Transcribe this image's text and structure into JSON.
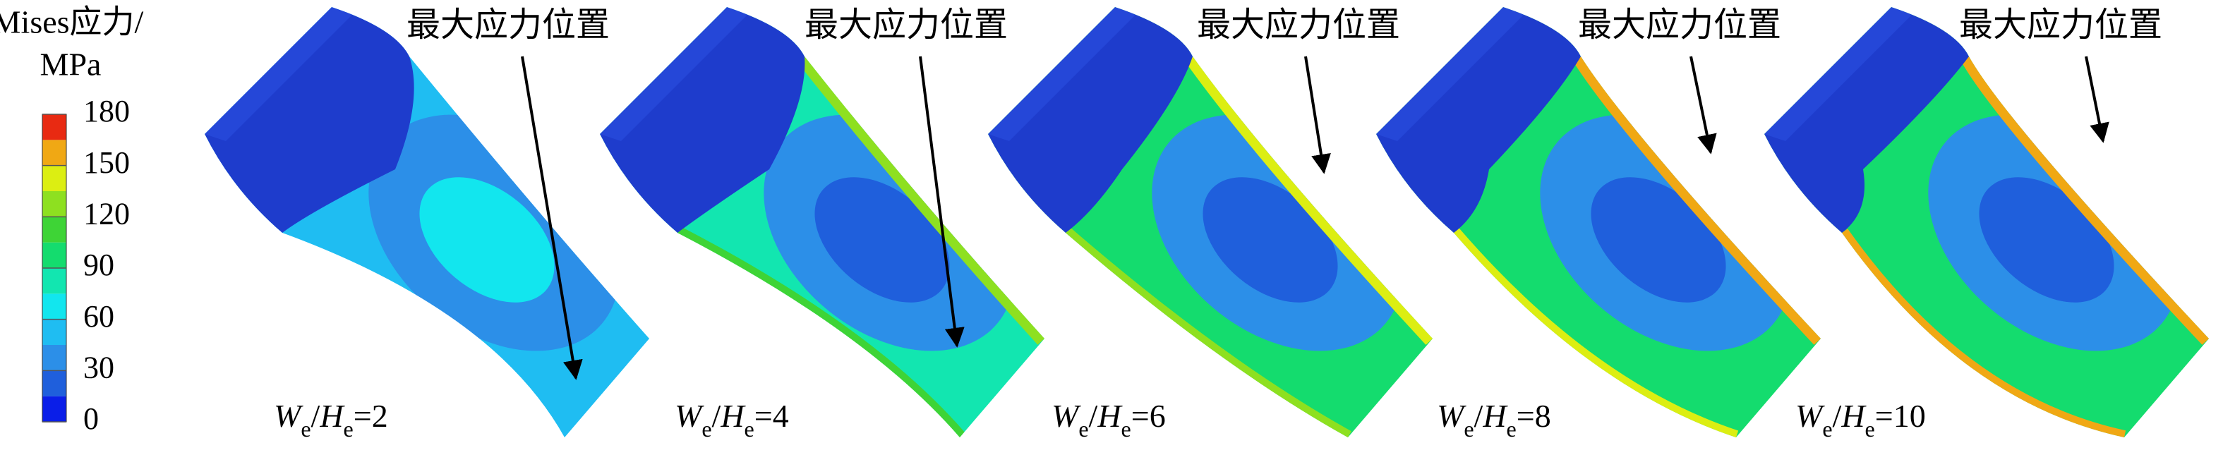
{
  "colorbar": {
    "title": "Mises应力/",
    "unit": "MPa",
    "range": [
      0,
      180
    ],
    "ticks": [
      0,
      30,
      60,
      90,
      120,
      150,
      180
    ],
    "colors": [
      "#0a1ee8",
      "#1f5fdc",
      "#2c8fe8",
      "#1fbdf2",
      "#12e6ee",
      "#12e6b0",
      "#14dc6e",
      "#3ed436",
      "#8ee020",
      "#dcee12",
      "#f0a814",
      "#e82a12"
    ]
  },
  "panels": [
    {
      "annotation": "最大应力位置",
      "label": {
        "var1": "W",
        "sub1": "e",
        "slash": "/",
        "var2": "H",
        "sub2": "e",
        "value": "=2"
      }
    },
    {
      "annotation": "最大应力位置",
      "label": {
        "var1": "W",
        "sub1": "e",
        "slash": "/",
        "var2": "H",
        "sub2": "e",
        "value": "=4"
      }
    },
    {
      "annotation": "最大应力位置",
      "label": {
        "var1": "W",
        "sub1": "e",
        "slash": "/",
        "var2": "H",
        "sub2": "e",
        "value": "=6"
      }
    },
    {
      "annotation": "最大应力位置",
      "label": {
        "var1": "W",
        "sub1": "e",
        "slash": "/",
        "var2": "H",
        "sub2": "e",
        "value": "=8"
      }
    },
    {
      "annotation": "最大应力位置",
      "label": {
        "var1": "W",
        "sub1": "e",
        "slash": "/",
        "var2": "H",
        "sub2": "e",
        "value": "=10"
      }
    }
  ]
}
